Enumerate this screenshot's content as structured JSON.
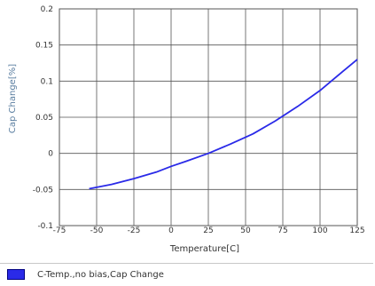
{
  "chart_data": {
    "type": "line",
    "title": "",
    "xlabel": "Temperature[C]",
    "ylabel": "Cap Change[%]",
    "xlim": [
      -75,
      125
    ],
    "ylim": [
      -0.1,
      0.2
    ],
    "x_ticks": [
      "-75",
      "-50",
      "-25",
      "0",
      "25",
      "50",
      "75",
      "100",
      "125"
    ],
    "y_ticks": [
      "0.2",
      "0.15",
      "0.1",
      "0.05",
      "0",
      "-0.05",
      "-0.1"
    ],
    "x_tick_values": [
      -75,
      -50,
      -25,
      0,
      25,
      50,
      75,
      100,
      125
    ],
    "y_tick_values": [
      0.2,
      0.15,
      0.1,
      0.05,
      0,
      -0.05,
      -0.1
    ],
    "grid": true,
    "legend_position": "bottom",
    "series": [
      {
        "name": "C-Temp.,no bias,Cap Change",
        "color": "#2a2ae8",
        "x": [
          -55,
          -40,
          -25,
          -10,
          0,
          10,
          25,
          40,
          55,
          70,
          85,
          100,
          115,
          125
        ],
        "y": [
          -0.049,
          -0.043,
          -0.035,
          -0.026,
          -0.018,
          -0.011,
          0.0,
          0.013,
          0.027,
          0.045,
          0.065,
          0.087,
          0.113,
          0.13
        ]
      }
    ]
  }
}
